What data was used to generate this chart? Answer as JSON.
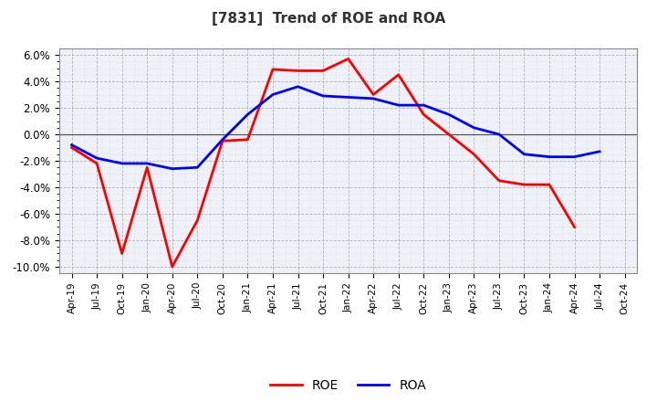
{
  "title": "[7831]  Trend of ROE and ROA",
  "x_labels": [
    "Apr-19",
    "Jul-19",
    "Oct-19",
    "Jan-20",
    "Apr-20",
    "Jul-20",
    "Oct-20",
    "Jan-21",
    "Apr-21",
    "Jul-21",
    "Oct-21",
    "Jan-22",
    "Apr-22",
    "Jul-22",
    "Oct-22",
    "Jan-23",
    "Apr-23",
    "Jul-23",
    "Oct-23",
    "Jan-24",
    "Apr-24",
    "Jul-24",
    "Oct-24"
  ],
  "roe": [
    -1.0,
    -2.2,
    -9.0,
    -2.5,
    -10.0,
    -6.5,
    -0.5,
    -0.4,
    4.9,
    4.8,
    4.8,
    5.7,
    3.0,
    4.5,
    1.5,
    0.0,
    -1.5,
    -3.5,
    -3.8,
    -3.8,
    -7.0,
    null,
    null
  ],
  "roa": [
    -0.8,
    -1.8,
    -2.2,
    -2.2,
    -2.6,
    -2.5,
    -0.4,
    1.5,
    3.0,
    3.6,
    2.9,
    2.8,
    2.7,
    2.2,
    2.2,
    1.5,
    0.5,
    0.0,
    -1.5,
    -1.7,
    -1.7,
    -1.3,
    null
  ],
  "ylim": [
    -10.5,
    6.5
  ],
  "yticks": [
    -10.0,
    -8.0,
    -6.0,
    -4.0,
    -2.0,
    0.0,
    2.0,
    4.0,
    6.0
  ],
  "roe_color": "#ff0000",
  "roa_color": "#0000ff",
  "bg_color": "#ffffff",
  "plot_bg_color": "#eef2f8",
  "grid_major_color": "#999999",
  "grid_minor_color": "#bbbbbb",
  "zero_line_color": "#555555",
  "line_width": 2.0,
  "title_fontsize": 11,
  "title_color": "#333333"
}
